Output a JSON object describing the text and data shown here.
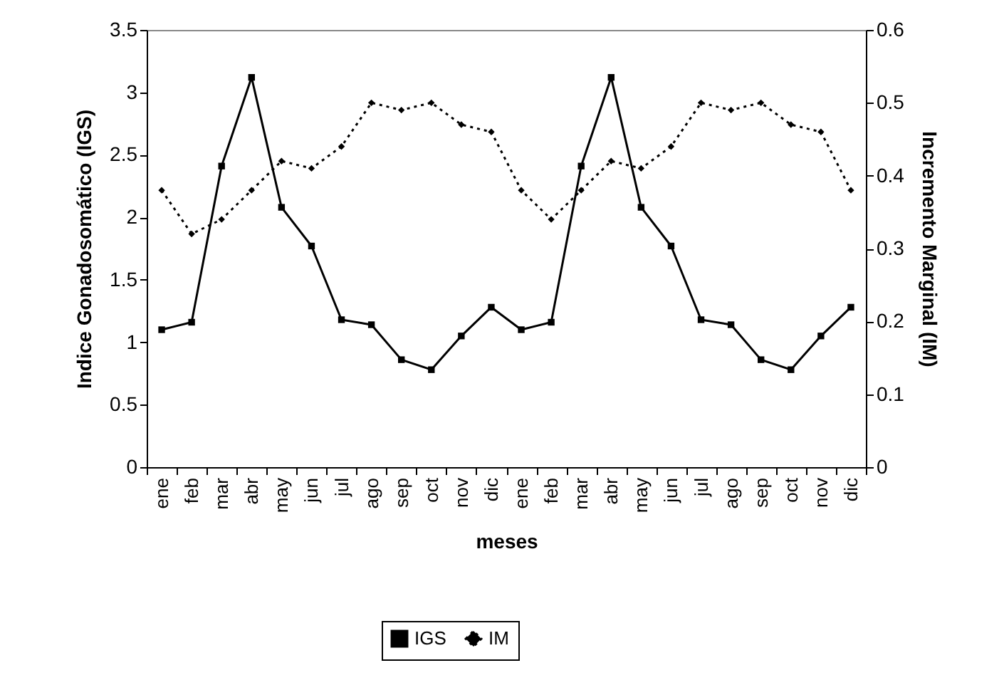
{
  "chart_data": {
    "type": "line",
    "xlabel": "meses",
    "ylabel": "Indice Gonadosomático (IGS)",
    "y2label": "Incremento Marginal (IM)",
    "categories": [
      "ene",
      "feb",
      "mar",
      "abr",
      "may",
      "jun",
      "jul",
      "ago",
      "sep",
      "oct",
      "nov",
      "dic",
      "ene",
      "feb",
      "mar",
      "abr",
      "may",
      "jun",
      "jul",
      "ago",
      "sep",
      "oct",
      "nov",
      "dic"
    ],
    "series": [
      {
        "name": "IGS",
        "color": "#000000",
        "marker": "square",
        "line_style": "solid",
        "values": [
          1.1,
          1.16,
          2.41,
          3.12,
          2.08,
          1.77,
          1.18,
          1.14,
          0.86,
          0.78,
          1.05,
          1.28,
          1.1,
          1.16,
          2.41,
          3.12,
          2.08,
          1.77,
          1.18,
          1.14,
          0.86,
          0.78,
          1.05,
          1.28
        ]
      },
      {
        "name": "IM",
        "color": "#000000",
        "marker": "diamond",
        "line_style": "dotted",
        "axis": "y2",
        "values": [
          0.38,
          0.32,
          0.34,
          0.38,
          0.42,
          0.41,
          0.44,
          0.5,
          0.49,
          0.5,
          0.47,
          0.46,
          0.38,
          0.34,
          0.38,
          0.42,
          0.41,
          0.44,
          0.5,
          0.49,
          0.5,
          0.47,
          0.46,
          0.38
        ]
      }
    ],
    "ylim": [
      0,
      3.5
    ],
    "yticks": [
      0,
      0.5,
      1,
      1.5,
      2,
      2.5,
      3,
      3.5
    ],
    "y2lim": [
      0,
      0.6
    ],
    "y2ticks": [
      0,
      0.1,
      0.2,
      0.3,
      0.4,
      0.5,
      0.6
    ],
    "grid": false,
    "legend": "bottom"
  }
}
